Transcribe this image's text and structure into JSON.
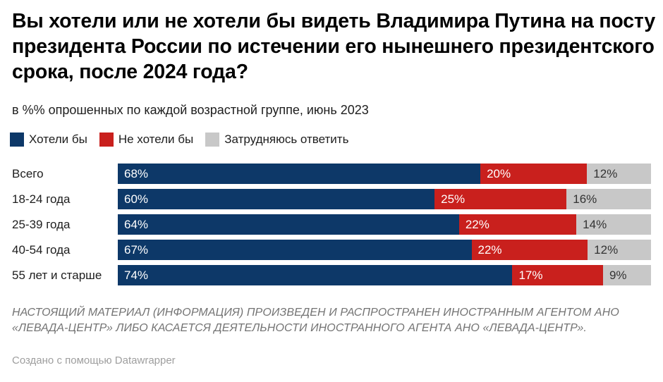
{
  "title": "Вы хотели или не хотели бы видеть Владимира Путина на посту президента России по истечении его нынешнего президентского срока, после 2024 года?",
  "subtitle": "в %% опрошенных по каждой возрастной группе, июнь 2023",
  "chart_data": {
    "type": "bar",
    "orientation": "horizontal-stacked",
    "title": "Вы хотели или не хотели бы видеть Владимира Путина на посту президента России по истечении его нынешнего президентского срока, после 2024 года?",
    "subtitle": "в %% опрошенных по каждой возрастной группе, июнь 2023",
    "categories": [
      "Всего",
      "18-24 года",
      "25-39 года",
      "40-54 года",
      "55 лет и старше"
    ],
    "series": [
      {
        "name": "Хотели бы",
        "color": "#0d3868",
        "label_color": "#ffffff",
        "values": [
          68,
          60,
          64,
          67,
          74
        ]
      },
      {
        "name": "Не хотели бы",
        "color": "#c9201d",
        "label_color": "#ffffff",
        "values": [
          20,
          25,
          22,
          22,
          17
        ]
      },
      {
        "name": "Затрудняюсь ответить",
        "color": "#c8c8c8",
        "label_color": "#333333",
        "values": [
          12,
          16,
          14,
          12,
          9
        ]
      }
    ],
    "value_suffix": "%",
    "xlim": [
      0,
      100
    ],
    "grid": false,
    "legend_position": "top",
    "value_labels": "inside-start"
  },
  "footer": {
    "disclaimer": "НАСТОЯЩИЙ МАТЕРИАЛ (ИНФОРМАЦИЯ) ПРОИЗВЕДЕН И РАСПРОСТРАНЕН ИНОСТРАННЫМ АГЕНТОМ АНО «ЛЕВАДА-ЦЕНТР» ЛИБО КАСАЕТСЯ ДЕЯТЕЛЬНОСТИ ИНОСТРАННОГО АГЕНТА АНО «ЛЕВАДА-ЦЕНТР».",
    "credit": "Создано с помощью Datawrapper"
  }
}
